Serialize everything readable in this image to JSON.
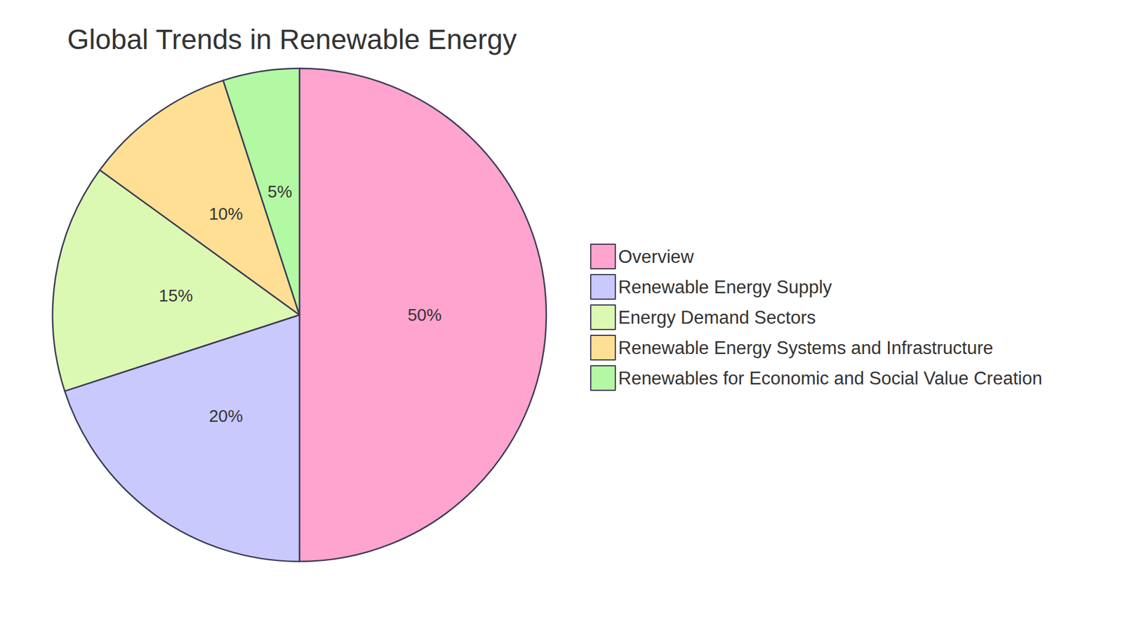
{
  "chart_data": {
    "type": "pie",
    "title": "Global Trends in Renewable Energy",
    "categories": [
      "Overview",
      "Renewable Energy Supply",
      "Energy Demand Sectors",
      "Renewable Energy Systems and Infrastructure",
      "Renewables for Economic and Social Value Creation"
    ],
    "values": [
      50,
      20,
      15,
      10,
      5
    ],
    "value_labels": [
      "50%",
      "20%",
      "15%",
      "10%",
      "5%"
    ],
    "colors": [
      "#ffa3cf",
      "#c9c9fe",
      "#dcf9b3",
      "#ffdf94",
      "#b3f9a3"
    ],
    "data_labels": true,
    "legend": "right"
  }
}
